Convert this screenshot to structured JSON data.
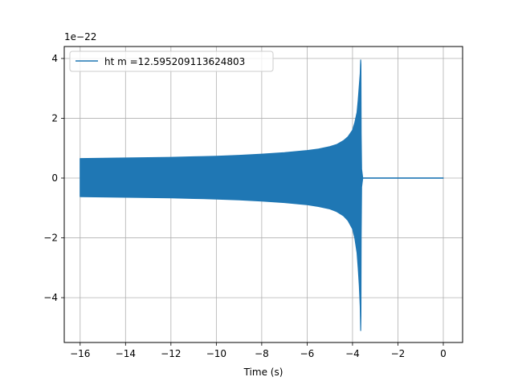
{
  "chart_data": {
    "type": "line",
    "title": "",
    "xlabel": "Time (s)",
    "ylabel": "",
    "y_offset_text": "1e−22",
    "xlim": [
      -16.7,
      0.85
    ],
    "ylim": [
      -5.5,
      4.4
    ],
    "x_ticks": [
      -16,
      -14,
      -12,
      -10,
      -8,
      -6,
      -4,
      -2,
      0
    ],
    "x_tick_labels": [
      "−16",
      "−14",
      "−12",
      "−10",
      "−8",
      "−6",
      "−4",
      "−2",
      "0"
    ],
    "y_ticks": [
      -4,
      -2,
      0,
      2,
      4
    ],
    "y_tick_labels": [
      "−4",
      "−2",
      "0",
      "2",
      "4"
    ],
    "grid": true,
    "legend": {
      "position": "top-left"
    },
    "series": [
      {
        "name": "ht m =12.595209113624803",
        "color": "#1f77b4",
        "x": [
          -16.0,
          -15.0,
          -14.0,
          -13.0,
          -12.0,
          -11.0,
          -10.0,
          -9.0,
          -8.0,
          -7.0,
          -6.0,
          -5.5,
          -5.0,
          -4.7,
          -4.4,
          -4.2,
          -4.0,
          -3.9,
          -3.8,
          -3.75,
          -3.7,
          -3.66,
          -3.64,
          -3.63,
          -3.62,
          -3.6,
          -3.55,
          -3.0,
          -2.0,
          -1.0,
          0.0
        ],
        "upper": [
          0.65,
          0.66,
          0.67,
          0.68,
          0.69,
          0.71,
          0.73,
          0.76,
          0.8,
          0.85,
          0.92,
          0.97,
          1.05,
          1.12,
          1.25,
          1.38,
          1.6,
          1.85,
          2.2,
          2.6,
          3.1,
          3.5,
          3.95,
          3.8,
          1.5,
          0.3,
          0.0,
          0.0,
          0.0,
          0.0,
          0.0
        ],
        "lower": [
          -0.62,
          -0.63,
          -0.64,
          -0.65,
          -0.66,
          -0.68,
          -0.7,
          -0.73,
          -0.77,
          -0.82,
          -0.89,
          -0.95,
          -1.03,
          -1.12,
          -1.26,
          -1.42,
          -1.7,
          -2.0,
          -2.5,
          -3.0,
          -3.6,
          -4.3,
          -5.1,
          -4.6,
          -2.0,
          -0.3,
          0.0,
          0.0,
          0.0,
          0.0,
          0.0
        ]
      }
    ]
  }
}
